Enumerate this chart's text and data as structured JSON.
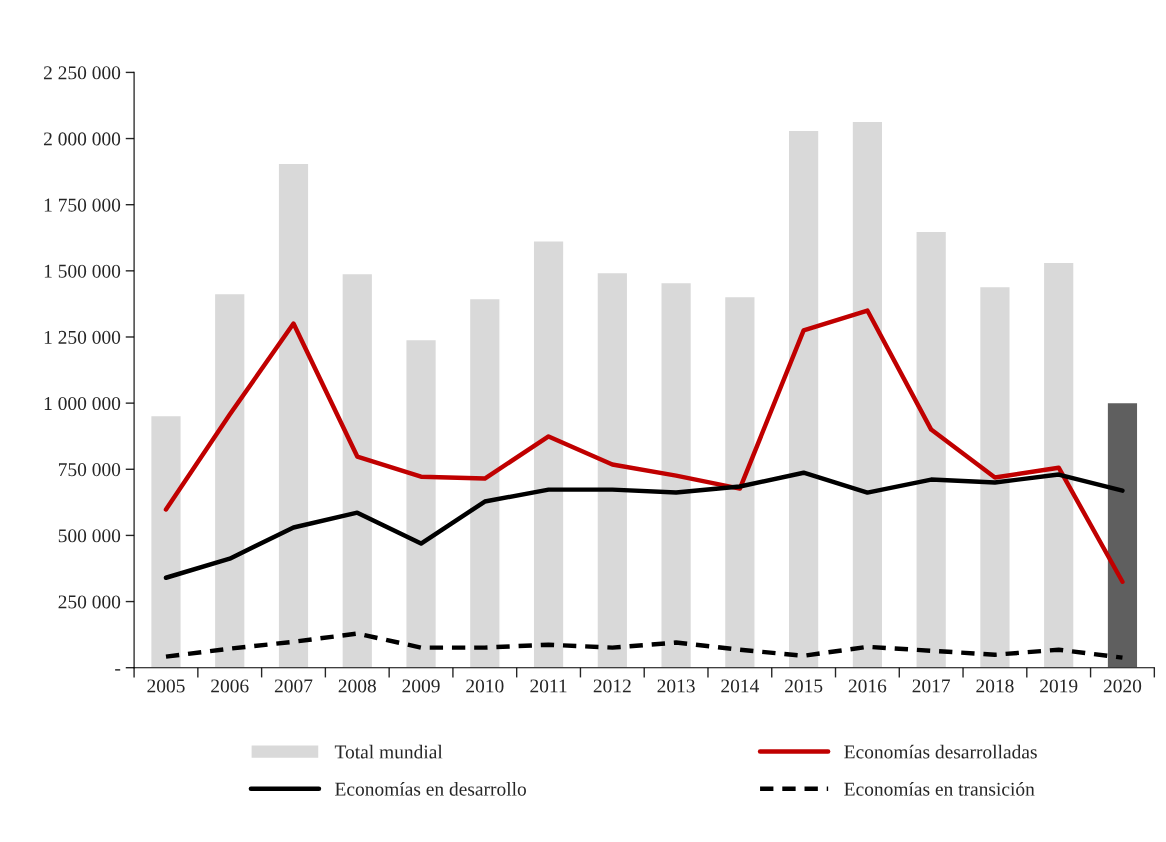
{
  "chart_data": {
    "type": "bar",
    "categories": [
      "2005",
      "2006",
      "2007",
      "2008",
      "2009",
      "2010",
      "2011",
      "2012",
      "2013",
      "2014",
      "2015",
      "2016",
      "2017",
      "2018",
      "2019",
      "2020"
    ],
    "series": [
      {
        "name": "Total mundial",
        "color": "#d9d9d9",
        "colors": [
          "#d9d9d9",
          "#d9d9d9",
          "#d9d9d9",
          "#d9d9d9",
          "#d9d9d9",
          "#d9d9d9",
          "#d9d9d9",
          "#d9d9d9",
          "#d9d9d9",
          "#d9d9d9",
          "#d9d9d9",
          "#d9d9d9",
          "#d9d9d9",
          "#d9d9d9",
          "#d9d9d9",
          "#5f5f5f"
        ],
        "values": [
          953000,
          1414000,
          1906000,
          1490000,
          1240000,
          1395000,
          1614000,
          1494000,
          1456000,
          1403000,
          2031000,
          2065000,
          1649000,
          1441000,
          1532000,
          1002000
        ]
      },
      {
        "name": "Economías desarrolladas",
        "type": "line",
        "color": "#c00000",
        "line_style": "solid",
        "values": [
          598000,
          957000,
          1301000,
          798000,
          722000,
          715000,
          874000,
          768000,
          726000,
          677000,
          1275000,
          1350000,
          900000,
          719000,
          756000,
          325000
        ]
      },
      {
        "name": "Economías en desarrollo",
        "type": "line",
        "color": "#000000",
        "line_style": "solid",
        "values": [
          340000,
          412000,
          530000,
          586000,
          469000,
          628000,
          673000,
          673000,
          662000,
          685000,
          737000,
          662000,
          711000,
          700000,
          730000,
          669000
        ]
      },
      {
        "name": "Economías en transición",
        "type": "line",
        "color": "#000000",
        "line_style": "dashed",
        "values": [
          42000,
          72000,
          98000,
          129000,
          76000,
          76000,
          87000,
          76000,
          95000,
          68000,
          45000,
          79000,
          64000,
          49000,
          68000,
          38000
        ]
      }
    ],
    "ylim": [
      0,
      2250000
    ],
    "yticks": [
      {
        "value": 0,
        "label": "-"
      },
      {
        "value": 250000,
        "label": "250 000"
      },
      {
        "value": 500000,
        "label": "500 000"
      },
      {
        "value": 750000,
        "label": "750 000"
      },
      {
        "value": 1000000,
        "label": "1 000 000"
      },
      {
        "value": 1250000,
        "label": "1 250 000"
      },
      {
        "value": 1500000,
        "label": "1 500 000"
      },
      {
        "value": 1750000,
        "label": "1 750 000"
      },
      {
        "value": 2000000,
        "label": "2 000 000"
      },
      {
        "value": 2250000,
        "label": "2 250 000"
      }
    ],
    "grid": false,
    "legend": "bottom"
  }
}
